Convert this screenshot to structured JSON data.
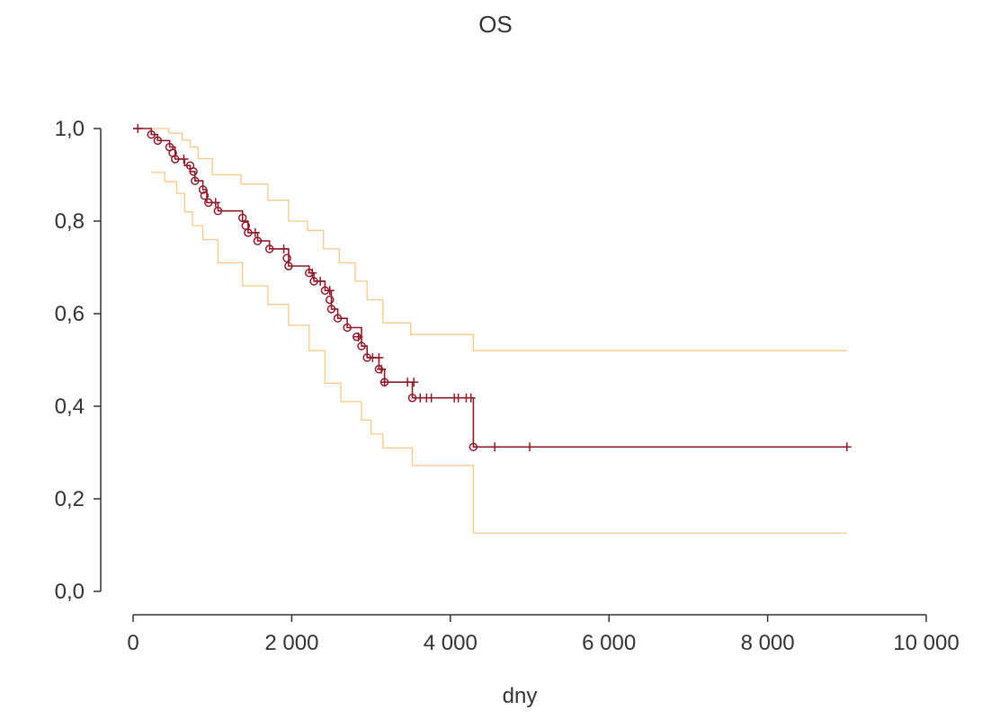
{
  "chart_data": {
    "type": "line",
    "title": "OS",
    "xlabel": "dny",
    "ylabel": "",
    "xlim": [
      0,
      10000
    ],
    "ylim": [
      0,
      1.0
    ],
    "x_ticks": [
      0,
      2000,
      4000,
      6000,
      8000,
      10000
    ],
    "x_tick_labels": [
      "0",
      "2 000",
      "4 000",
      "6 000",
      "8 000",
      "10 000"
    ],
    "y_ticks": [
      0,
      0.2,
      0.4,
      0.6,
      0.8,
      1.0
    ],
    "y_tick_labels": [
      "0,0",
      "0,2",
      "0,4",
      "0,6",
      "0,8",
      "1,0"
    ],
    "grid": false,
    "colors": {
      "survival": "#8b1a2b",
      "ci": "#f7c98a",
      "axis": "#333333"
    },
    "series": [
      {
        "role": "survival",
        "step": true,
        "x": [
          0,
          230,
          310,
          460,
          530,
          650,
          720,
          780,
          880,
          930,
          1070,
          1380,
          1450,
          1570,
          1720,
          1960,
          2220,
          2280,
          2420,
          2500,
          2580,
          2700,
          2880,
          2950,
          3100,
          3170,
          3520,
          4290,
          9000
        ],
        "y": [
          1.0,
          0.987,
          0.974,
          0.96,
          0.934,
          0.92,
          0.907,
          0.887,
          0.868,
          0.84,
          0.822,
          0.8,
          0.775,
          0.757,
          0.74,
          0.703,
          0.688,
          0.67,
          0.65,
          0.61,
          0.59,
          0.57,
          0.53,
          0.505,
          0.48,
          0.452,
          0.418,
          0.312,
          0.312
        ]
      },
      {
        "role": "ci-upper",
        "step": true,
        "x": [
          230,
          450,
          620,
          720,
          820,
          1000,
          1360,
          1700,
          1960,
          2200,
          2400,
          2600,
          2800,
          2950,
          3150,
          3500,
          4290,
          9000
        ],
        "y": [
          1.0,
          0.99,
          0.975,
          0.96,
          0.935,
          0.9,
          0.88,
          0.845,
          0.8,
          0.78,
          0.74,
          0.71,
          0.67,
          0.63,
          0.58,
          0.555,
          0.52,
          0.52
        ]
      },
      {
        "role": "ci-lower",
        "step": true,
        "x": [
          230,
          400,
          550,
          650,
          750,
          880,
          1070,
          1380,
          1700,
          1960,
          2220,
          2420,
          2620,
          2880,
          3000,
          3150,
          3520,
          4290,
          9000
        ],
        "y": [
          0.905,
          0.885,
          0.86,
          0.82,
          0.79,
          0.76,
          0.71,
          0.66,
          0.62,
          0.575,
          0.52,
          0.45,
          0.41,
          0.37,
          0.34,
          0.31,
          0.272,
          0.126,
          0.126
        ]
      }
    ],
    "event_markers": [
      [
        230,
        0.987
      ],
      [
        310,
        0.974
      ],
      [
        460,
        0.96
      ],
      [
        500,
        0.947
      ],
      [
        530,
        0.934
      ],
      [
        720,
        0.92
      ],
      [
        760,
        0.907
      ],
      [
        780,
        0.887
      ],
      [
        880,
        0.868
      ],
      [
        900,
        0.855
      ],
      [
        950,
        0.84
      ],
      [
        1070,
        0.822
      ],
      [
        1380,
        0.807
      ],
      [
        1420,
        0.79
      ],
      [
        1450,
        0.775
      ],
      [
        1570,
        0.757
      ],
      [
        1720,
        0.74
      ],
      [
        1940,
        0.72
      ],
      [
        1960,
        0.703
      ],
      [
        2220,
        0.688
      ],
      [
        2280,
        0.67
      ],
      [
        2420,
        0.65
      ],
      [
        2480,
        0.63
      ],
      [
        2500,
        0.61
      ],
      [
        2580,
        0.59
      ],
      [
        2700,
        0.57
      ],
      [
        2820,
        0.55
      ],
      [
        2880,
        0.53
      ],
      [
        2950,
        0.505
      ],
      [
        3100,
        0.48
      ],
      [
        3170,
        0.452
      ],
      [
        3520,
        0.418
      ],
      [
        4290,
        0.312
      ]
    ],
    "censor_markers": [
      [
        60,
        1.0
      ],
      [
        640,
        0.934
      ],
      [
        1040,
        0.84
      ],
      [
        1540,
        0.775
      ],
      [
        1900,
        0.74
      ],
      [
        2260,
        0.688
      ],
      [
        2360,
        0.67
      ],
      [
        2480,
        0.65
      ],
      [
        2840,
        0.55
      ],
      [
        3020,
        0.505
      ],
      [
        3100,
        0.505
      ],
      [
        3130,
        0.48
      ],
      [
        3170,
        0.452
      ],
      [
        3460,
        0.452
      ],
      [
        3540,
        0.452
      ],
      [
        3620,
        0.418
      ],
      [
        3700,
        0.418
      ],
      [
        3760,
        0.418
      ],
      [
        4050,
        0.418
      ],
      [
        4100,
        0.418
      ],
      [
        4200,
        0.418
      ],
      [
        4260,
        0.418
      ],
      [
        4560,
        0.312
      ],
      [
        5000,
        0.312
      ],
      [
        9000,
        0.312
      ]
    ]
  }
}
